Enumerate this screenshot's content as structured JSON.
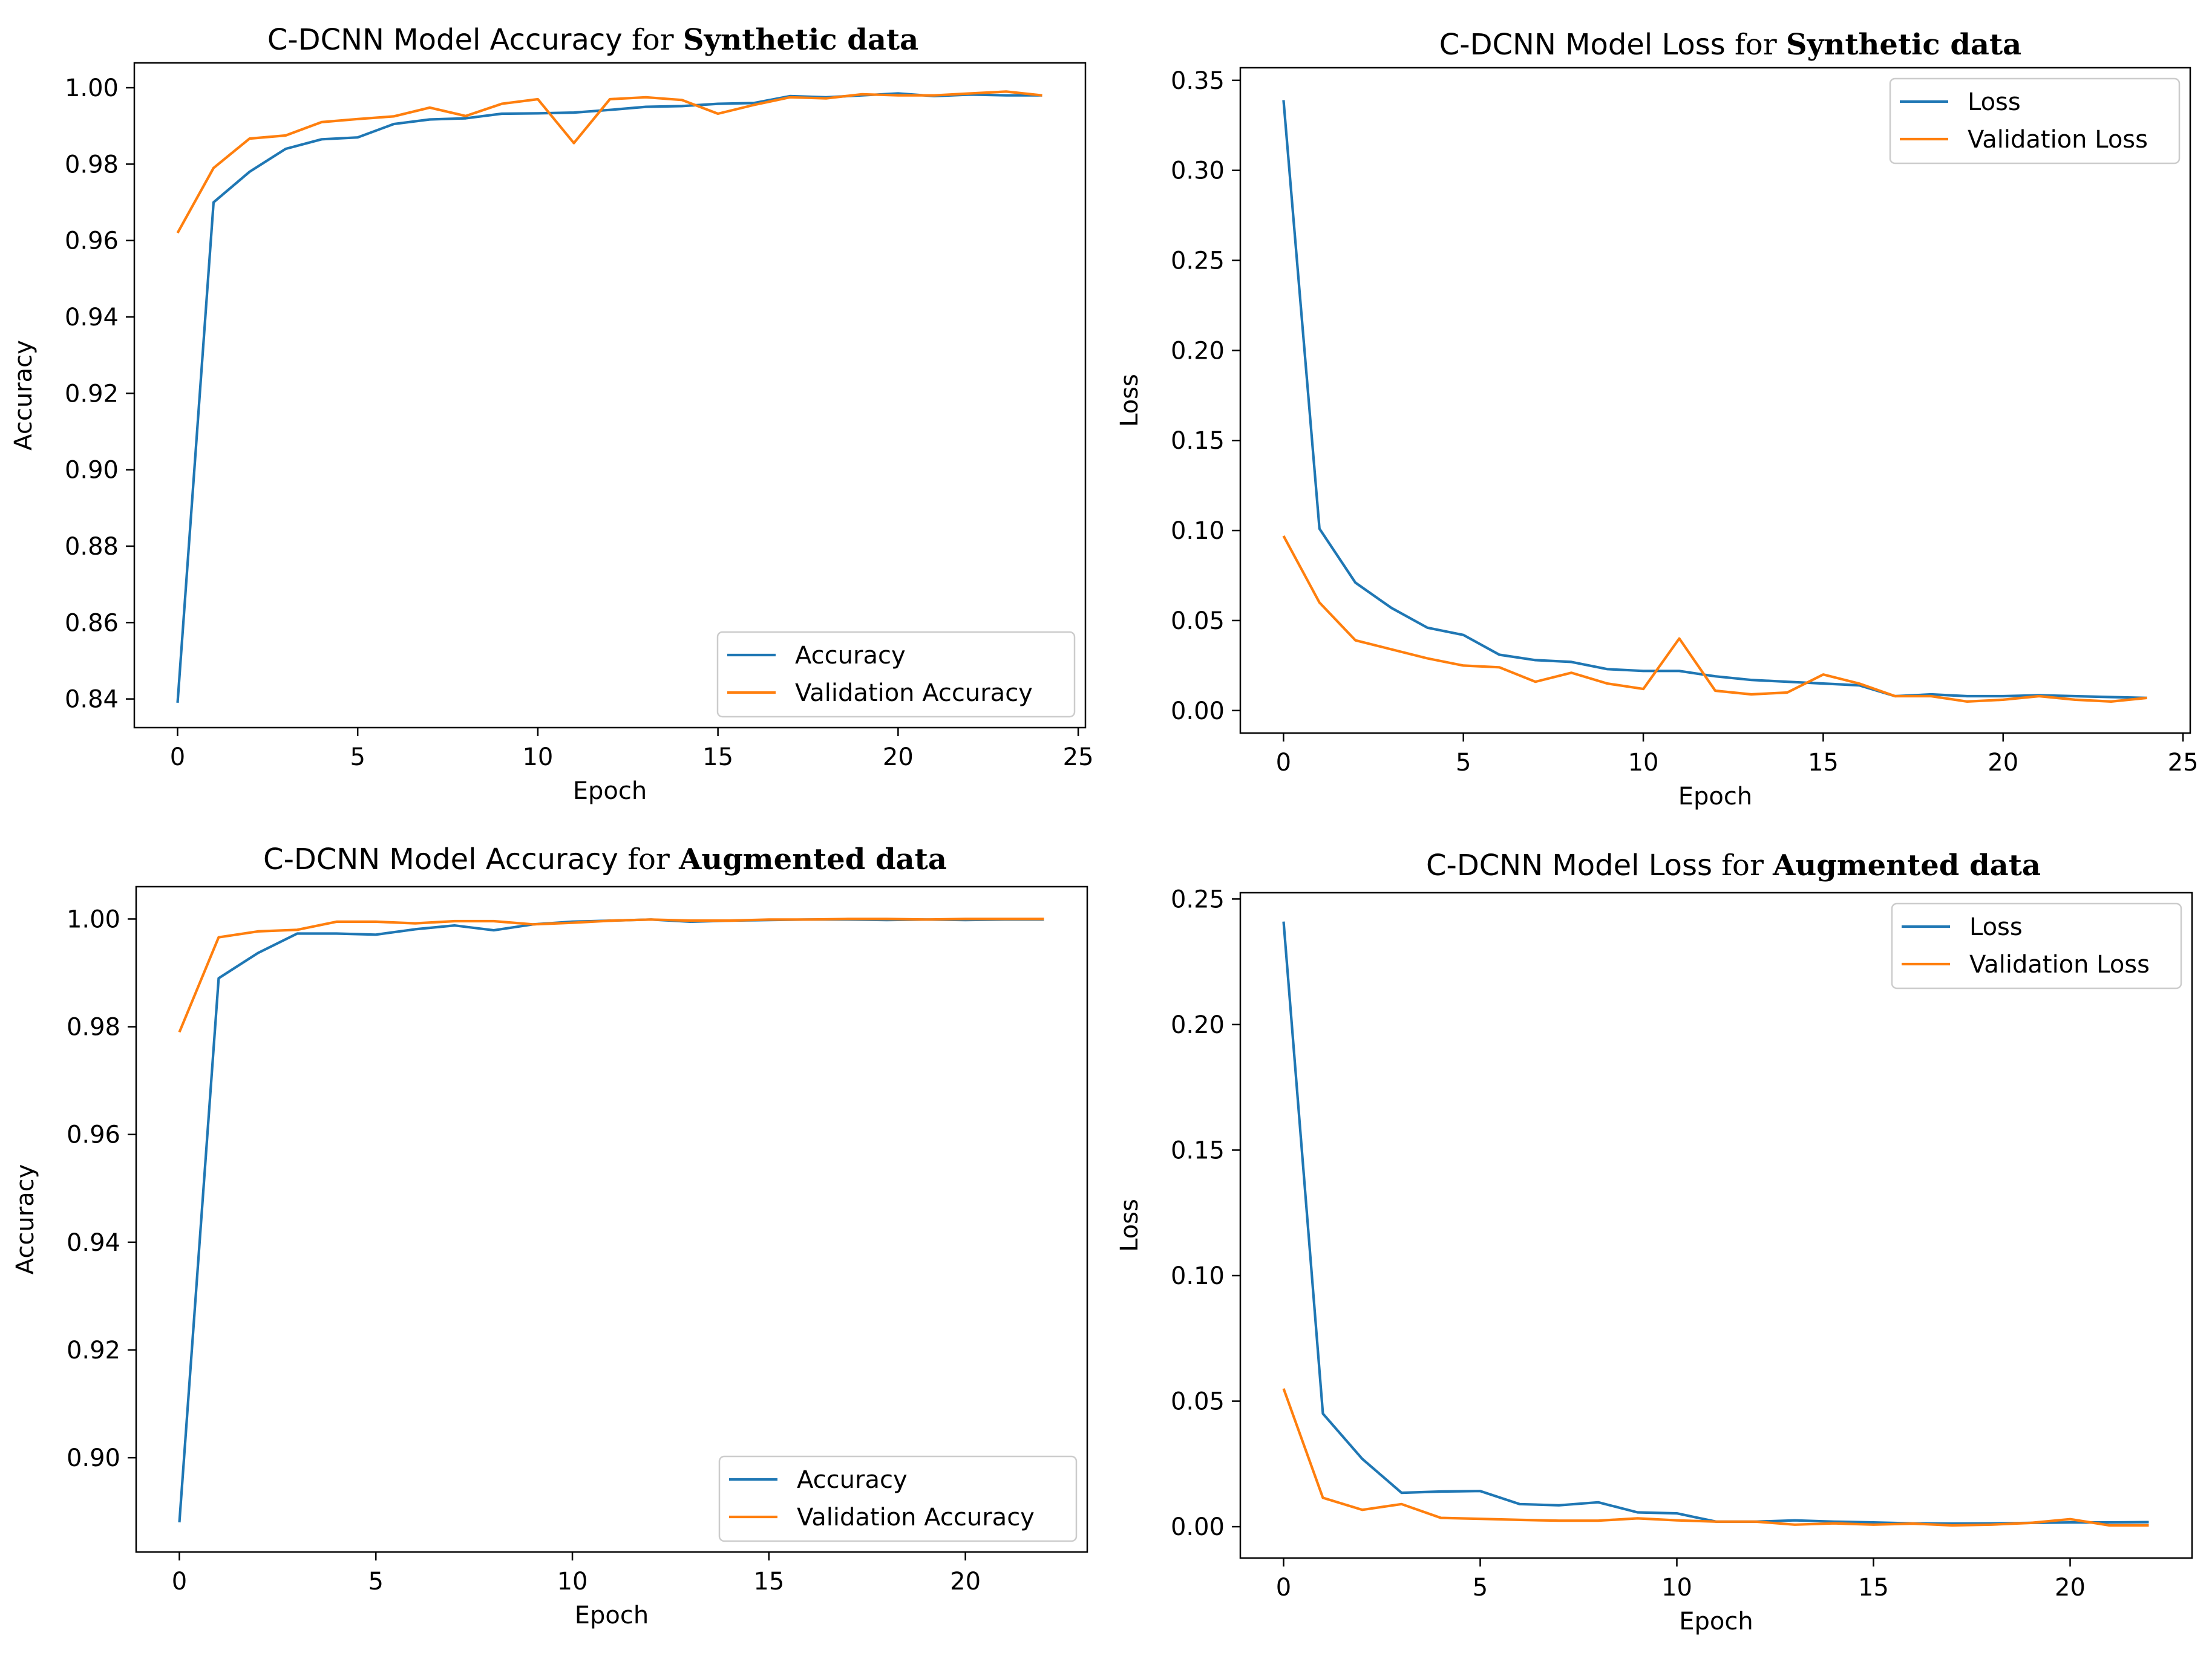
{
  "colors": {
    "accuracy": "#1f77b4",
    "validation": "#ff7f0e",
    "axis": "#000000",
    "legend_border": "#cccccc"
  },
  "chart_data": [
    {
      "type": "line",
      "title": "C-DCNN Model Accuracy",
      "title_suffix": "for",
      "title_bold": "Synthetic data",
      "xlabel": "Epoch",
      "ylabel": "Accuracy",
      "xlim": [
        -1.2,
        25.2
      ],
      "ylim": [
        0.8325,
        1.0065
      ],
      "xticks": [
        0,
        5,
        10,
        15,
        20,
        25
      ],
      "xtick_labels": [
        "0",
        "5",
        "10",
        "15",
        "20",
        "25"
      ],
      "yticks": [
        0.84,
        0.86,
        0.88,
        0.9,
        0.92,
        0.94,
        0.96,
        0.98,
        1.0
      ],
      "ytick_labels": [
        "0.84",
        "0.86",
        "0.88",
        "0.90",
        "0.92",
        "0.94",
        "0.96",
        "0.98",
        "1.00"
      ],
      "legend_position": "lower-right",
      "x": [
        0,
        1,
        2,
        3,
        4,
        5,
        6,
        7,
        8,
        9,
        10,
        11,
        12,
        13,
        14,
        15,
        16,
        17,
        18,
        19,
        20,
        21,
        22,
        23,
        24
      ],
      "series": [
        {
          "name": "Accuracy",
          "color_key": "accuracy",
          "values": [
            0.839,
            0.97,
            0.978,
            0.984,
            0.9865,
            0.987,
            0.9905,
            0.9917,
            0.992,
            0.9932,
            0.9933,
            0.9935,
            0.9942,
            0.995,
            0.9952,
            0.9958,
            0.996,
            0.9978,
            0.9975,
            0.998,
            0.9985,
            0.9978,
            0.9982,
            0.998,
            0.998
          ]
        },
        {
          "name": "Validation Accuracy",
          "color_key": "validation",
          "values": [
            0.962,
            0.979,
            0.9867,
            0.9875,
            0.991,
            0.9918,
            0.9925,
            0.9948,
            0.9926,
            0.9958,
            0.997,
            0.9855,
            0.997,
            0.9975,
            0.9968,
            0.9932,
            0.9955,
            0.9975,
            0.9972,
            0.9983,
            0.998,
            0.998,
            0.9985,
            0.999,
            0.998
          ]
        }
      ]
    },
    {
      "type": "line",
      "title": "C-DCNN Model Loss",
      "title_suffix": "for",
      "title_bold": "Synthetic data",
      "xlabel": "Epoch",
      "ylabel": "Loss",
      "xlim": [
        -1.2,
        25.2
      ],
      "ylim": [
        -0.0125,
        0.357
      ],
      "xticks": [
        0,
        5,
        10,
        15,
        20,
        25
      ],
      "xtick_labels": [
        "0",
        "5",
        "10",
        "15",
        "20",
        "25"
      ],
      "yticks": [
        0.0,
        0.05,
        0.1,
        0.15,
        0.2,
        0.25,
        0.3,
        0.35
      ],
      "ytick_labels": [
        "0.00",
        "0.05",
        "0.10",
        "0.15",
        "0.20",
        "0.25",
        "0.30",
        "0.35"
      ],
      "legend_position": "top-right",
      "x": [
        0,
        1,
        2,
        3,
        4,
        5,
        6,
        7,
        8,
        9,
        10,
        11,
        12,
        13,
        14,
        15,
        16,
        17,
        18,
        19,
        20,
        21,
        22,
        23,
        24
      ],
      "series": [
        {
          "name": "Loss",
          "color_key": "accuracy",
          "values": [
            0.339,
            0.101,
            0.071,
            0.057,
            0.046,
            0.042,
            0.031,
            0.028,
            0.027,
            0.023,
            0.022,
            0.022,
            0.019,
            0.017,
            0.016,
            0.015,
            0.014,
            0.008,
            0.009,
            0.008,
            0.008,
            0.0085,
            0.008,
            0.0075,
            0.007
          ]
        },
        {
          "name": "Validation Loss",
          "color_key": "validation",
          "values": [
            0.097,
            0.06,
            0.039,
            0.034,
            0.029,
            0.025,
            0.024,
            0.016,
            0.021,
            0.015,
            0.012,
            0.04,
            0.011,
            0.009,
            0.01,
            0.02,
            0.015,
            0.008,
            0.008,
            0.005,
            0.006,
            0.008,
            0.006,
            0.005,
            0.007
          ]
        }
      ]
    },
    {
      "type": "line",
      "title": "C-DCNN Model Accuracy",
      "title_suffix": "for",
      "title_bold": "Augmented data",
      "xlabel": "Epoch",
      "ylabel": "Accuracy",
      "xlim": [
        -1.1,
        23.1
      ],
      "ylim": [
        0.8825,
        1.006
      ],
      "xticks": [
        0,
        5,
        10,
        15,
        20
      ],
      "xtick_labels": [
        "0",
        "5",
        "10",
        "15",
        "20"
      ],
      "yticks": [
        0.9,
        0.92,
        0.94,
        0.96,
        0.98,
        1.0
      ],
      "ytick_labels": [
        "0.90",
        "0.92",
        "0.94",
        "0.96",
        "0.98",
        "1.00"
      ],
      "legend_position": "lower-right",
      "x": [
        0,
        1,
        2,
        3,
        4,
        5,
        6,
        7,
        8,
        9,
        10,
        11,
        12,
        13,
        14,
        15,
        16,
        17,
        18,
        19,
        20,
        21,
        22
      ],
      "series": [
        {
          "name": "Accuracy",
          "color_key": "accuracy",
          "values": [
            0.888,
            0.989,
            0.9937,
            0.9973,
            0.9973,
            0.9971,
            0.9981,
            0.9988,
            0.9979,
            0.999,
            0.9995,
            0.9997,
            0.9999,
            0.9995,
            0.9997,
            0.9998,
            0.9999,
            0.9999,
            0.9998,
            0.9999,
            0.9998,
            0.9999,
            0.9999
          ]
        },
        {
          "name": "Validation Accuracy",
          "color_key": "validation",
          "values": [
            0.979,
            0.9966,
            0.9977,
            0.998,
            0.9995,
            0.9995,
            0.9992,
            0.9996,
            0.9996,
            0.999,
            0.9993,
            0.9997,
            0.9999,
            0.9997,
            0.9997,
            0.9999,
            0.9999,
            1.0,
            1.0,
            0.9999,
            1.0,
            1.0,
            1.0
          ]
        }
      ]
    },
    {
      "type": "line",
      "title": "C-DCNN Model Loss",
      "title_suffix": "for",
      "title_bold": "Augmented data",
      "xlabel": "Epoch",
      "ylabel": "Loss",
      "xlim": [
        -1.1,
        23.1
      ],
      "ylim": [
        -0.0125,
        0.2525
      ],
      "xticks": [
        0,
        5,
        10,
        15,
        20
      ],
      "xtick_labels": [
        "0",
        "5",
        "10",
        "15",
        "20"
      ],
      "yticks": [
        0.0,
        0.05,
        0.1,
        0.15,
        0.2,
        0.25
      ],
      "ytick_labels": [
        "0.00",
        "0.05",
        "0.10",
        "0.15",
        "0.20",
        "0.25"
      ],
      "legend_position": "top-right",
      "x": [
        0,
        1,
        2,
        3,
        4,
        5,
        6,
        7,
        8,
        9,
        10,
        11,
        12,
        13,
        14,
        15,
        16,
        17,
        18,
        19,
        20,
        21,
        22
      ],
      "series": [
        {
          "name": "Loss",
          "color_key": "accuracy",
          "values": [
            0.241,
            0.045,
            0.027,
            0.0135,
            0.014,
            0.0142,
            0.009,
            0.0085,
            0.0097,
            0.0057,
            0.0053,
            0.002,
            0.002,
            0.0025,
            0.002,
            0.0017,
            0.0013,
            0.0012,
            0.0013,
            0.0015,
            0.0017,
            0.0017,
            0.0018
          ]
        },
        {
          "name": "Validation Loss",
          "color_key": "validation",
          "values": [
            0.055,
            0.0115,
            0.0067,
            0.009,
            0.0035,
            0.0031,
            0.0027,
            0.0024,
            0.0024,
            0.0033,
            0.0025,
            0.002,
            0.002,
            0.0008,
            0.0013,
            0.0008,
            0.0012,
            0.0005,
            0.0008,
            0.0015,
            0.003,
            0.0005,
            0.0005
          ]
        }
      ]
    }
  ]
}
